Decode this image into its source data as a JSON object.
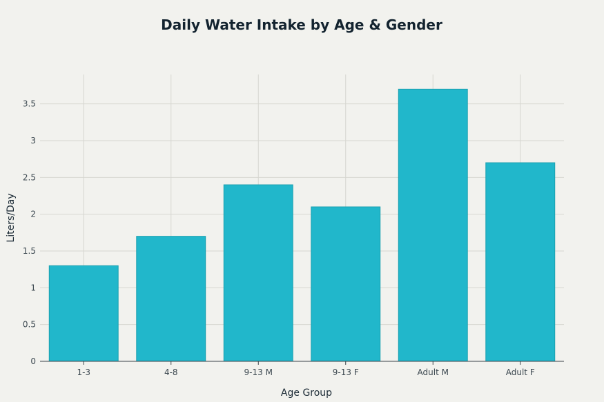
{
  "chart_data": {
    "type": "bar",
    "title": "Daily Water Intake by Age & Gender",
    "xlabel": "Age Group",
    "ylabel": "Liters/Day",
    "categories": [
      "1-3",
      "4-8",
      "9-13 M",
      "9-13 F",
      "Adult M",
      "Adult F"
    ],
    "values": [
      1.3,
      1.7,
      2.4,
      2.1,
      3.7,
      2.7
    ],
    "ylim": [
      0,
      3.9
    ],
    "yticks": [
      0,
      0.5,
      1,
      1.5,
      2,
      2.5,
      3,
      3.5
    ],
    "ytick_labels": [
      "0",
      "0.5",
      "1",
      "1.5",
      "2",
      "2.5",
      "3",
      "3.5"
    ],
    "grid": true,
    "bar_color": "#21b7cb",
    "bar_edge_color": "#1aa0b0",
    "background_color": "#f2f2ee"
  }
}
